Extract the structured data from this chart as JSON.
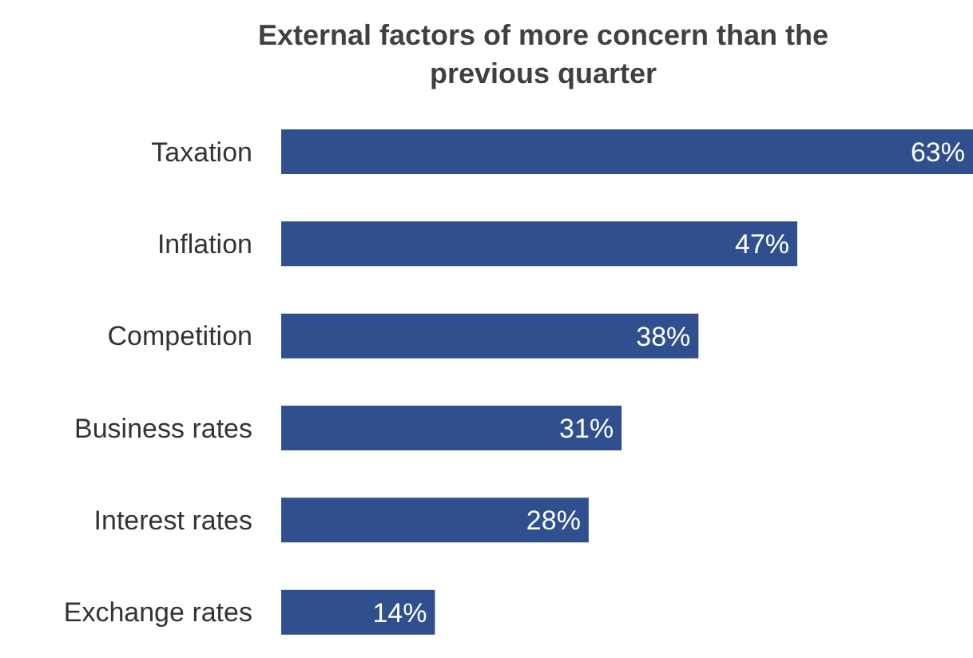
{
  "chart_data": {
    "type": "bar",
    "orientation": "horizontal",
    "title": "External factors of more concern than the previous quarter",
    "categories": [
      "Taxation",
      "Inflation",
      "Competition",
      "Business rates",
      "Interest rates",
      "Exchange rates"
    ],
    "values": [
      63,
      47,
      38,
      31,
      28,
      14
    ],
    "value_labels": [
      "63%",
      "47%",
      "38%",
      "31%",
      "28%",
      "14%"
    ],
    "color": "#2f4f8f"
  }
}
